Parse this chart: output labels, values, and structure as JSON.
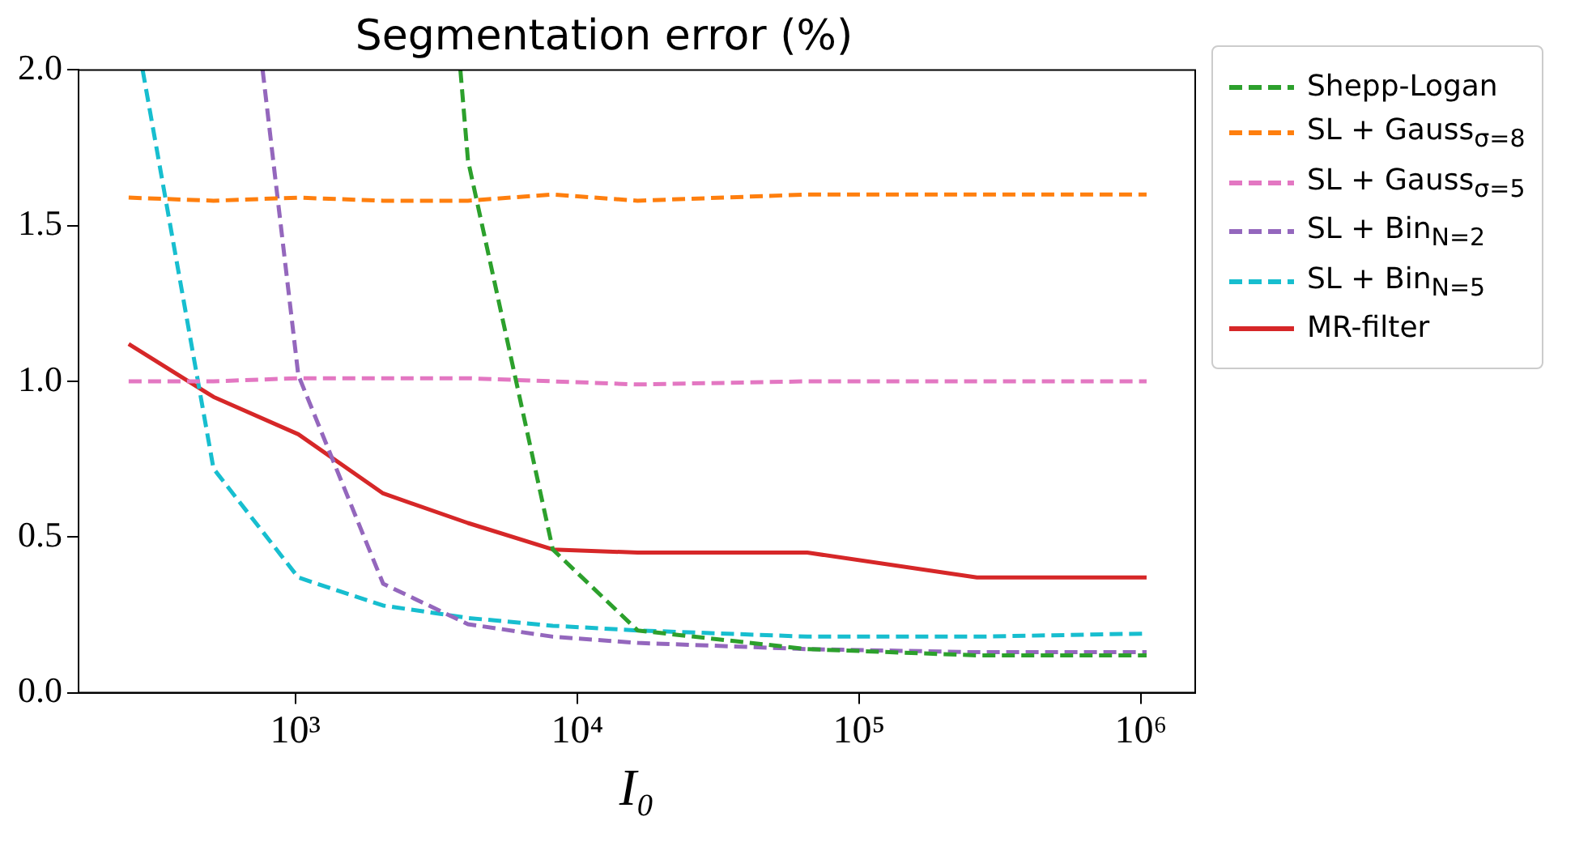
{
  "chart_data": {
    "type": "line",
    "title": "Segmentation error (%)",
    "xlabel": "I₀",
    "x": [
      256,
      512,
      1024,
      2048,
      4096,
      8192,
      16384,
      65536,
      262144,
      1048576
    ],
    "series": [
      {
        "name": "Shepp-Logan",
        "color": "#2ca02c",
        "line_style": "dashed",
        "x": [
          3850,
          4096,
          8192,
          16384,
          65536,
          262144,
          1048576
        ],
        "values": [
          2.0,
          1.71,
          0.46,
          0.2,
          0.14,
          0.12,
          0.12
        ]
      },
      {
        "name": "SL + Gauss$_{σ=8}$",
        "color": "#ff7f0e",
        "line_style": "dashed",
        "values": [
          1.59,
          1.58,
          1.59,
          1.58,
          1.58,
          1.6,
          1.58,
          1.6,
          1.6,
          1.6
        ]
      },
      {
        "name": "SL + Gauss$_{σ=5}$",
        "color": "#e377c2",
        "line_style": "dashed",
        "values": [
          1.0,
          1.0,
          1.01,
          1.01,
          1.01,
          1.0,
          0.99,
          1.0,
          1.0,
          1.0
        ]
      },
      {
        "name": "SL + Bin$_{N=2}$",
        "color": "#9467bd",
        "line_style": "dashed",
        "x": [
          765,
          1024,
          2048,
          4096,
          8192,
          16384,
          65536,
          262144,
          1048576
        ],
        "values": [
          2.0,
          1.02,
          0.35,
          0.22,
          0.18,
          0.16,
          0.14,
          0.13,
          0.13
        ]
      },
      {
        "name": "SL + Bin$_{N=5}$",
        "color": "#17becf",
        "line_style": "dashed",
        "x": [
          287,
          512,
          1024,
          2048,
          4096,
          8192,
          16384,
          65536,
          262144,
          1048576
        ],
        "values": [
          2.0,
          0.72,
          0.37,
          0.28,
          0.24,
          0.215,
          0.2,
          0.18,
          0.18,
          0.19
        ]
      },
      {
        "name": "MR-filter",
        "color": "#d62728",
        "line_style": "solid",
        "values": [
          1.12,
          0.95,
          0.83,
          0.64,
          0.545,
          0.46,
          0.45,
          0.45,
          0.37,
          0.37
        ]
      }
    ],
    "log": "x",
    "xlim": [
      170,
      1560000
    ],
    "xticks": [
      {
        "value": 1000,
        "label": "10³"
      },
      {
        "value": 10000,
        "label": "10⁴"
      },
      {
        "value": 100000,
        "label": "10⁵"
      },
      {
        "value": 1000000,
        "label": "10⁶"
      }
    ],
    "ylim": [
      0,
      2
    ],
    "yticks": [
      {
        "value": 0,
        "label": "0.0"
      },
      {
        "value": 0.5,
        "label": "0.5"
      },
      {
        "value": 1,
        "label": "1.0"
      },
      {
        "value": 1.5,
        "label": "1.5"
      },
      {
        "value": 2,
        "label": "2.0"
      }
    ],
    "grid": false,
    "legend": "right"
  }
}
